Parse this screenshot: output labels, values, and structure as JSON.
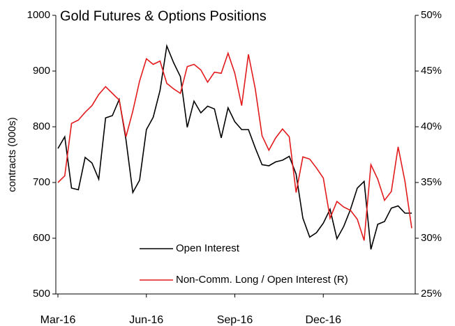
{
  "chart_data": {
    "type": "line",
    "title": "Gold Futures & Options Positions",
    "y_label": "contracts (000s)",
    "categories": [
      "Mar-16",
      null,
      null,
      null,
      null,
      null,
      null,
      null,
      null,
      null,
      null,
      null,
      null,
      "Jun-16",
      null,
      null,
      null,
      null,
      null,
      null,
      null,
      null,
      null,
      null,
      null,
      null,
      "Sep-16",
      null,
      null,
      null,
      null,
      null,
      null,
      null,
      null,
      null,
      null,
      null,
      null,
      "Dec-16",
      null,
      null,
      null,
      null,
      null,
      null,
      null,
      null,
      null,
      null,
      null,
      null,
      null
    ],
    "series": [
      {
        "name": "Open Interest",
        "color": "#000000",
        "axis": "y",
        "values": [
          761,
          782,
          690,
          687,
          745,
          735,
          706,
          816,
          820,
          849,
          777,
          682,
          704,
          795,
          817,
          865,
          945,
          915,
          890,
          799,
          846,
          825,
          837,
          832,
          780,
          834,
          809,
          795,
          795,
          762,
          732,
          730,
          737,
          740,
          747,
          715,
          636,
          602,
          610,
          627,
          652,
          599,
          621,
          652,
          690,
          702,
          580,
          625,
          630,
          654,
          658,
          645,
          645
        ]
      },
      {
        "name": "Non-Comm. Long / Open Interest (R)",
        "color": "#e31a1c",
        "axis": "y2",
        "values": [
          35.0,
          35.6,
          40.3,
          40.6,
          41.3,
          41.9,
          42.9,
          43.6,
          43.0,
          42.4,
          39.1,
          41.4,
          44.1,
          46.1,
          45.6,
          45.9,
          43.9,
          43.4,
          43.0,
          45.4,
          45.6,
          45.1,
          44.0,
          44.9,
          44.8,
          46.6,
          44.8,
          41.9,
          46.5,
          43.4,
          39.2,
          37.9,
          39.0,
          39.8,
          39.1,
          34.1,
          37.3,
          37.1,
          36.3,
          35.4,
          31.8,
          33.3,
          32.8,
          32.5,
          31.7,
          29.8,
          36.6,
          35.3,
          33.4,
          34.2,
          38.2,
          35.1,
          30.9
        ]
      }
    ],
    "ylim": [
      500,
      1000
    ],
    "yticks": [
      500,
      600,
      700,
      800,
      900,
      1000
    ],
    "y2lim": [
      25,
      50
    ],
    "y2ticks": [
      {
        "value": 25,
        "label": "25%"
      },
      {
        "value": 30,
        "label": "30%"
      },
      {
        "value": 35,
        "label": "35%"
      },
      {
        "value": 40,
        "label": "40%"
      },
      {
        "value": 45,
        "label": "45%"
      },
      {
        "value": 50,
        "label": "50%"
      }
    ]
  }
}
